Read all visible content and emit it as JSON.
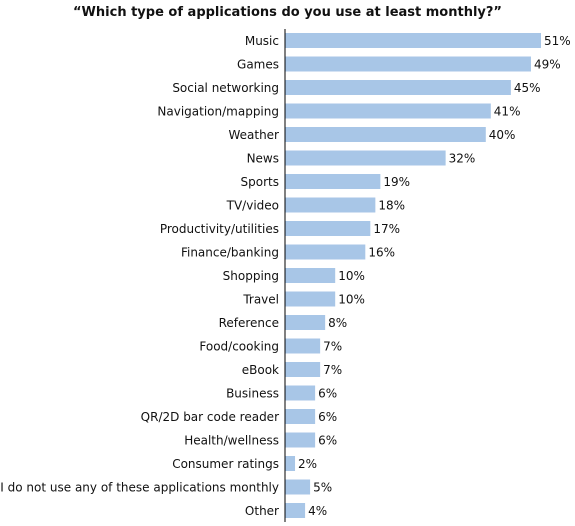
{
  "chart_data": {
    "type": "bar",
    "orientation": "horizontal",
    "title": "“Which type of applications do you use at least monthly?”",
    "xlabel": "",
    "ylabel": "",
    "value_suffix": "%",
    "xlim": [
      0,
      55
    ],
    "grid": false,
    "legend": "none",
    "categories": [
      "Music",
      "Games",
      "Social networking",
      "Navigation/mapping",
      "Weather",
      "News",
      "Sports",
      "TV/video",
      "Productivity/utilities",
      "Finance/banking",
      "Shopping",
      "Travel",
      "Reference",
      "Food/cooking",
      "eBook",
      "Business",
      "QR/2D bar code reader",
      "Health/wellness",
      "Consumer ratings",
      "I do not use any of these applications monthly",
      "Other"
    ],
    "values": [
      51,
      49,
      45,
      41,
      40,
      32,
      19,
      18,
      17,
      16,
      10,
      10,
      8,
      7,
      7,
      6,
      6,
      6,
      2,
      5,
      4
    ],
    "colors": {
      "bar": "#a8c6e7",
      "axis": "#000000",
      "text": "#111111"
    }
  }
}
